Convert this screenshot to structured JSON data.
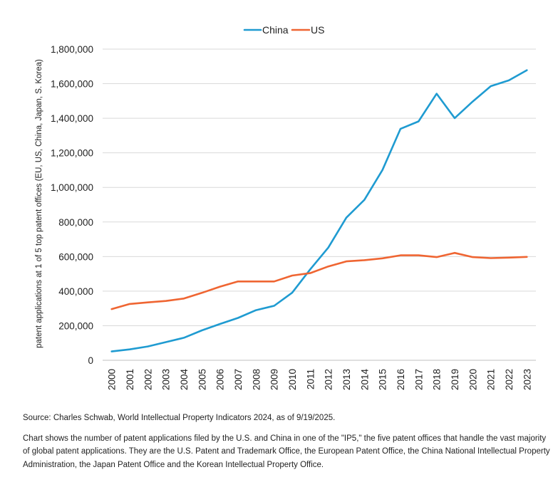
{
  "chart_data": {
    "type": "line",
    "title": "",
    "xlabel": "",
    "ylabel": "patent applications at 1 of 5 top patent offices (EU, US, China, Japan, S. Korea)",
    "x": [
      "2000",
      "2001",
      "2002",
      "2003",
      "2004",
      "2005",
      "2006",
      "2007",
      "2008",
      "2009",
      "2010",
      "2011",
      "2012",
      "2013",
      "2014",
      "2015",
      "2016",
      "2017",
      "2018",
      "2019",
      "2020",
      "2021",
      "2022",
      "2023"
    ],
    "ylim": [
      0,
      1800000
    ],
    "yticks": [
      0,
      200000,
      400000,
      600000,
      800000,
      1000000,
      1200000,
      1400000,
      1600000,
      1800000
    ],
    "ytick_labels": [
      "0",
      "200,000",
      "400,000",
      "600,000",
      "800,000",
      "1,000,000",
      "1,200,000",
      "1,400,000",
      "1,600,000",
      "1,800,000"
    ],
    "grid": "horizontal",
    "legend": "top-center",
    "series": [
      {
        "name": "China",
        "color": "#1f9bd1",
        "values": [
          51000,
          63000,
          80000,
          105000,
          130000,
          173000,
          210000,
          245000,
          290000,
          315000,
          391000,
          526000,
          652000,
          825000,
          928000,
          1101000,
          1339000,
          1382000,
          1542000,
          1401000,
          1497000,
          1586000,
          1619000,
          1678000
        ]
      },
      {
        "name": "US",
        "color": "#ef6532",
        "values": [
          296000,
          326000,
          335000,
          343000,
          357000,
          390000,
          426000,
          456000,
          456000,
          456000,
          490000,
          504000,
          543000,
          572000,
          579000,
          590000,
          607000,
          607000,
          597000,
          621000,
          597000,
          591000,
          594000,
          598000
        ]
      }
    ]
  },
  "notes": {
    "source": "Source: Charles Schwab, World Intellectual Property Indicators 2024, as of 9/19/2025.",
    "description": "Chart shows the number of patent applications filed by the U.S. and China in one of the \"IP5,\" the five patent offices that handle the vast majority of global patent applications. They are the U.S. Patent and Trademark Office, the European Patent Office, the China National Intellectual Property Administration, the Japan Patent Office and the Korean Intellectual Property Office."
  }
}
